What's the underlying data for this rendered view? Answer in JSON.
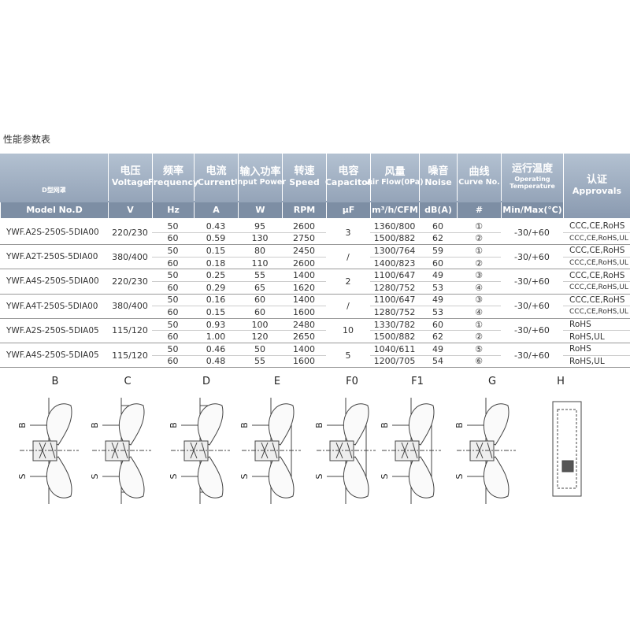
{
  "title": "性能参数表",
  "header": {
    "image_label": "D型网罩",
    "columns": [
      {
        "cn": "电压",
        "en": "Voltage"
      },
      {
        "cn": "频率",
        "en": "Frequency"
      },
      {
        "cn": "电流",
        "en": "Current"
      },
      {
        "cn": "输入功率",
        "en": "Input Power"
      },
      {
        "cn": "转速",
        "en": "Speed"
      },
      {
        "cn": "电容",
        "en": "Capacitor"
      },
      {
        "cn": "风量",
        "en": "Air Flow(0Pa)"
      },
      {
        "cn": "噪音",
        "en": "Noise"
      },
      {
        "cn": "曲线",
        "en": "Curve No."
      },
      {
        "cn": "运行温度",
        "en": "Operating Temperature"
      },
      {
        "cn": "认证",
        "en": "Approvals"
      }
    ],
    "units": [
      "Model No.D",
      "V",
      "Hz",
      "A",
      "W",
      "RPM",
      "µF",
      "m³/h/CFM",
      "dB(A)",
      "#",
      "Min/Max(℃)"
    ]
  },
  "table": {
    "groups": [
      {
        "model": "YWF.A2S-250S-5DIA00",
        "voltage": "220/230",
        "capacitor": "3",
        "temp": "-30/+60",
        "rows": [
          [
            "50",
            "0.43",
            "95",
            "2600",
            "1360/800",
            "60",
            "①",
            "CCC,CE,RoHS"
          ],
          [
            "60",
            "0.59",
            "130",
            "2750",
            "1500/882",
            "62",
            "②",
            "CCC,CE,RoHS,UL"
          ]
        ]
      },
      {
        "model": "YWF.A2T-250S-5DIA00",
        "voltage": "380/400",
        "capacitor": "/",
        "temp": "-30/+60",
        "rows": [
          [
            "50",
            "0.15",
            "80",
            "2450",
            "1300/764",
            "59",
            "①",
            "CCC,CE,RoHS"
          ],
          [
            "60",
            "0.18",
            "110",
            "2600",
            "1400/823",
            "60",
            "②",
            "CCC,CE,RoHS,UL"
          ]
        ]
      },
      {
        "model": "YWF.A4S-250S-5DIA00",
        "voltage": "220/230",
        "capacitor": "2",
        "temp": "-30/+60",
        "rows": [
          [
            "50",
            "0.25",
            "55",
            "1400",
            "1100/647",
            "49",
            "③",
            "CCC,CE,RoHS"
          ],
          [
            "60",
            "0.29",
            "65",
            "1620",
            "1280/752",
            "53",
            "④",
            "CCC,CE,RoHS,UL"
          ]
        ]
      },
      {
        "model": "YWF.A4T-250S-5DIA00",
        "voltage": "380/400",
        "capacitor": "/",
        "temp": "-30/+60",
        "rows": [
          [
            "50",
            "0.16",
            "60",
            "1400",
            "1100/647",
            "49",
            "③",
            "CCC,CE,RoHS"
          ],
          [
            "60",
            "0.15",
            "60",
            "1600",
            "1280/752",
            "53",
            "④",
            "CCC,CE,RoHS,UL"
          ]
        ]
      },
      {
        "model": "YWF.A2S-250S-5DIA05",
        "voltage": "115/120",
        "capacitor": "10",
        "temp": "-30/+60",
        "rows": [
          [
            "50",
            "0.93",
            "100",
            "2480",
            "1330/782",
            "60",
            "①",
            "RoHS"
          ],
          [
            "60",
            "1.00",
            "120",
            "2650",
            "1500/882",
            "62",
            "②",
            "RoHS,UL"
          ]
        ]
      },
      {
        "model": "YWF.A4S-250S-5DIA05",
        "voltage": "115/120",
        "capacitor": "5",
        "temp": "-30/+60",
        "rows": [
          [
            "50",
            "0.46",
            "50",
            "1400",
            "1040/611",
            "49",
            "⑤",
            "RoHS"
          ],
          [
            "60",
            "0.48",
            "55",
            "1600",
            "1200/705",
            "54",
            "⑥",
            "RoHS,UL"
          ]
        ]
      }
    ]
  },
  "diagrams": [
    {
      "label": "B",
      "dims": [
        "B",
        "S"
      ]
    },
    {
      "label": "C",
      "dims": [
        "B",
        "S"
      ]
    },
    {
      "label": "D",
      "dims": [
        "B",
        "S"
      ]
    },
    {
      "label": "E",
      "dims": [
        "B",
        "S"
      ]
    },
    {
      "label": "F0",
      "dims": [
        "B",
        "S"
      ]
    },
    {
      "label": "F1",
      "dims": [
        "B",
        "S"
      ]
    },
    {
      "label": "G",
      "dims": [
        "B",
        "S"
      ]
    },
    {
      "label": "H",
      "dims": []
    }
  ]
}
